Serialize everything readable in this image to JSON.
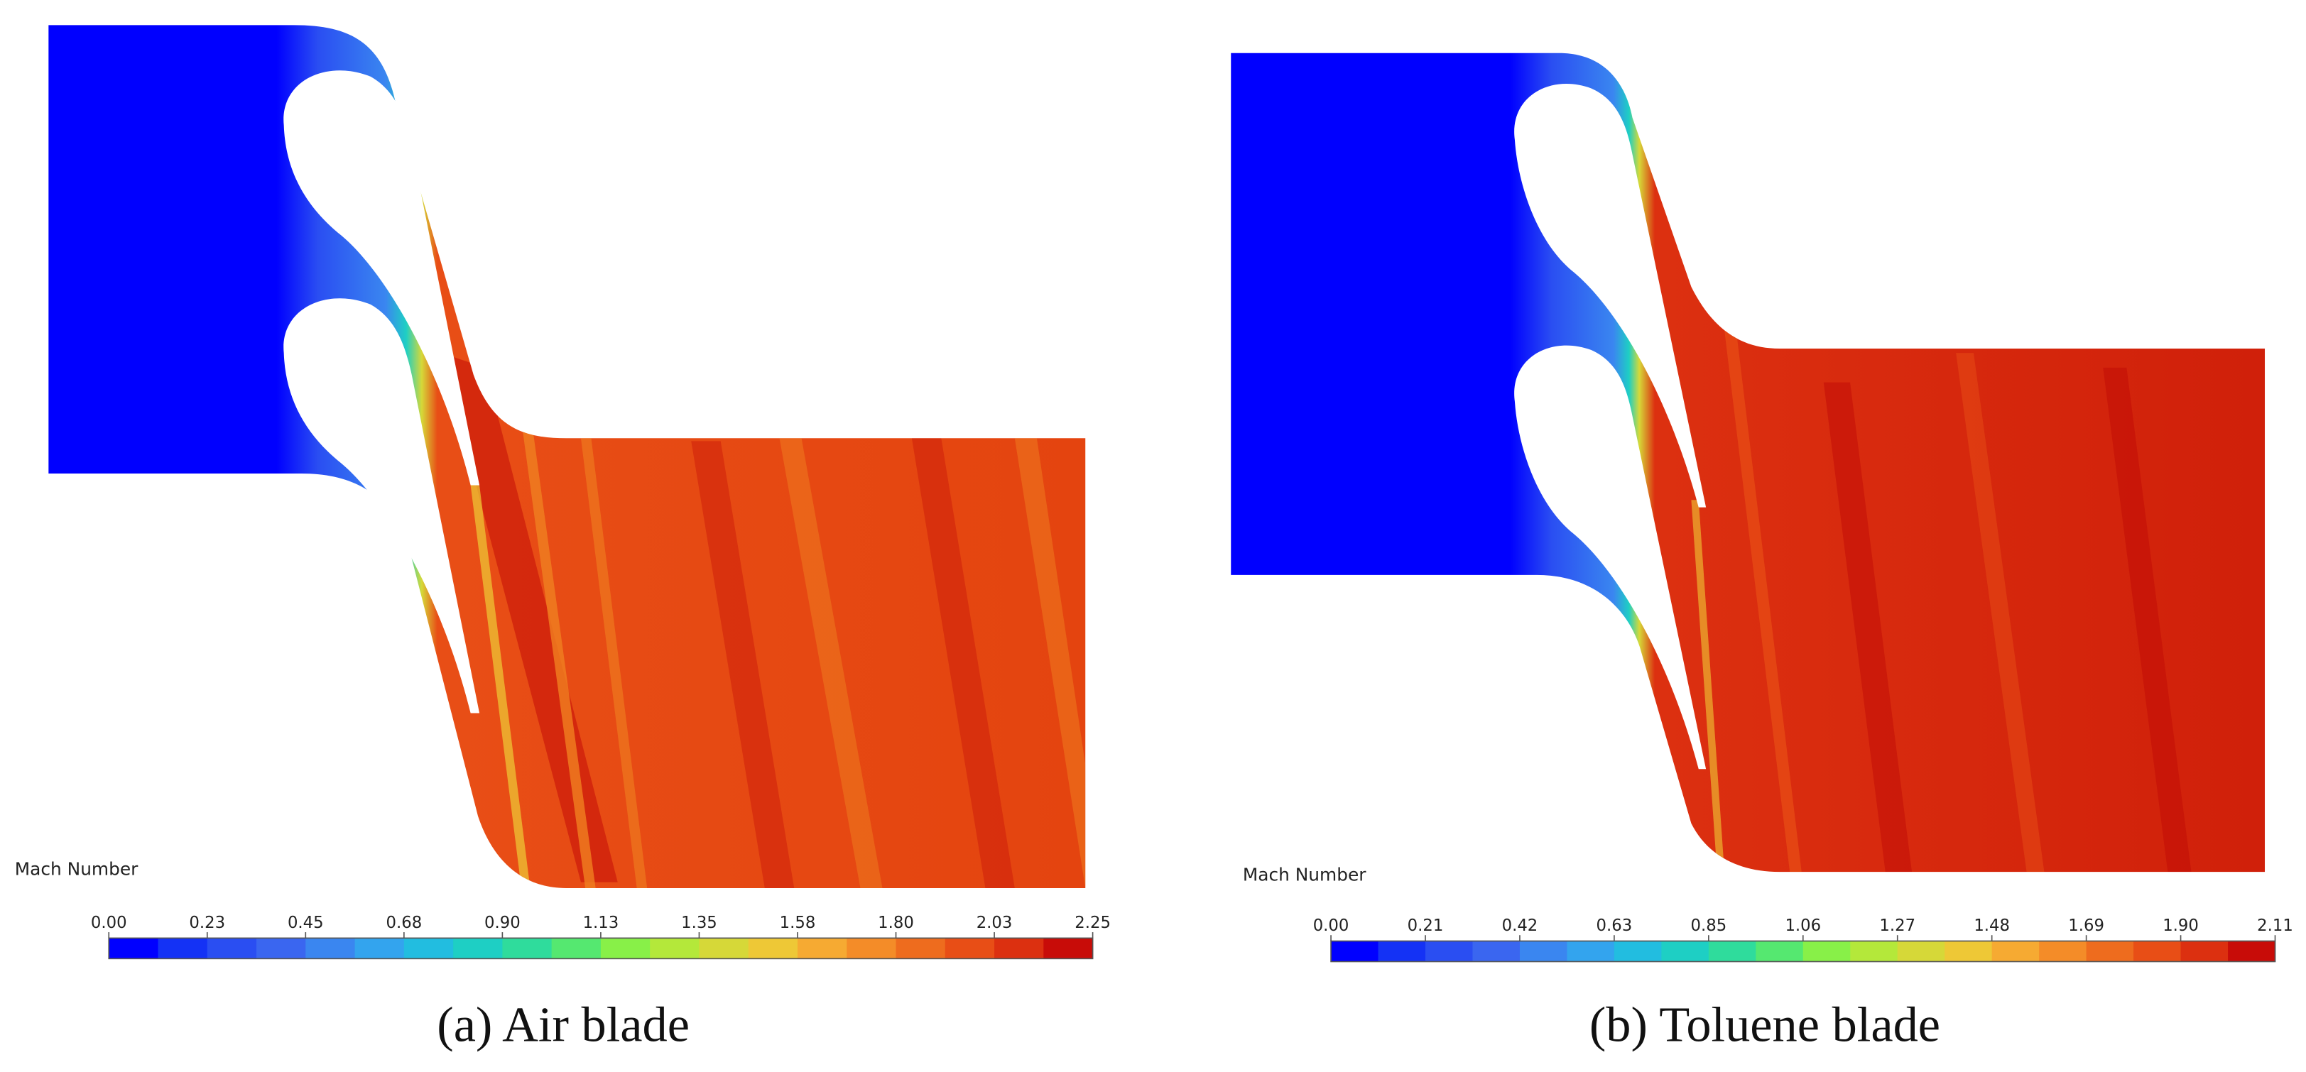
{
  "panels": [
    {
      "legend_title": "Mach Number",
      "colorbar_ticks": [
        "0.00",
        "0.23",
        "0.45",
        "0.68",
        "0.90",
        "1.13",
        "1.35",
        "1.58",
        "1.80",
        "2.03",
        "2.25"
      ],
      "caption": "(a) Air blade"
    },
    {
      "legend_title": "Mach Number",
      "colorbar_ticks": [
        "0.00",
        "0.21",
        "0.42",
        "0.63",
        "0.85",
        "1.06",
        "1.27",
        "1.48",
        "1.69",
        "1.90",
        "2.11"
      ],
      "caption": "(b) Toluene blade"
    }
  ],
  "colormap": [
    "#0000ff",
    "#1432f5",
    "#2a4ef2",
    "#3a66f0",
    "#3a86f0",
    "#33a4ee",
    "#22bde0",
    "#1ecfc4",
    "#2fdc9c",
    "#55e870",
    "#88f048",
    "#b4e83a",
    "#d6d838",
    "#eec836",
    "#f6aa32",
    "#f48c28",
    "#ee6c1e",
    "#e84e16",
    "#dc3010",
    "#c80c08"
  ]
}
